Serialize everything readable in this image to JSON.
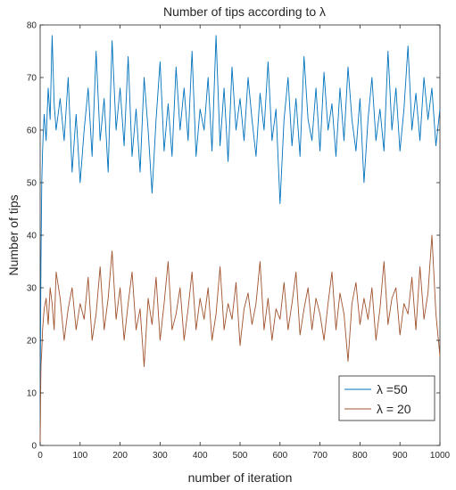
{
  "chart_data": {
    "type": "line",
    "title": "Number of tips according to λ",
    "xlabel": "number of iteration",
    "ylabel": "Number of tips",
    "xlim": [
      0,
      1000
    ],
    "ylim": [
      0,
      80
    ],
    "xticks": [
      0,
      100,
      200,
      300,
      400,
      500,
      600,
      700,
      800,
      900,
      1000
    ],
    "yticks": [
      0,
      10,
      20,
      30,
      40,
      50,
      60,
      70,
      80
    ],
    "grid": false,
    "legend_position": "bottom-right",
    "series": [
      {
        "name": "λ =50",
        "color": "#0072BD",
        "x": [
          0,
          1,
          2,
          4,
          6,
          8,
          10,
          15,
          20,
          25,
          30,
          35,
          40,
          50,
          60,
          70,
          80,
          90,
          100,
          110,
          120,
          130,
          140,
          150,
          160,
          170,
          180,
          190,
          200,
          210,
          220,
          230,
          240,
          250,
          260,
          270,
          280,
          290,
          300,
          310,
          320,
          330,
          340,
          350,
          360,
          370,
          380,
          390,
          400,
          410,
          420,
          430,
          440,
          450,
          460,
          470,
          480,
          490,
          500,
          510,
          520,
          530,
          540,
          550,
          560,
          570,
          580,
          590,
          600,
          610,
          620,
          630,
          640,
          650,
          660,
          670,
          680,
          690,
          700,
          710,
          720,
          730,
          740,
          750,
          760,
          770,
          780,
          790,
          800,
          810,
          820,
          830,
          840,
          850,
          860,
          870,
          880,
          890,
          900,
          910,
          920,
          930,
          940,
          950,
          960,
          970,
          980,
          990,
          1000
        ],
        "values": [
          0,
          20,
          35,
          50,
          56,
          60,
          63,
          58,
          68,
          62,
          78,
          65,
          60,
          66,
          58,
          70,
          52,
          63,
          50,
          60,
          68,
          55,
          75,
          58,
          66,
          52,
          77,
          60,
          68,
          57,
          74,
          55,
          64,
          52,
          70,
          60,
          48,
          62,
          73,
          56,
          65,
          55,
          72,
          60,
          68,
          58,
          75,
          55,
          64,
          60,
          70,
          56,
          78,
          57,
          68,
          54,
          72,
          60,
          66,
          58,
          70,
          62,
          55,
          67,
          60,
          73,
          58,
          64,
          46,
          62,
          70,
          57,
          66,
          55,
          74,
          62,
          58,
          68,
          56,
          71,
          60,
          65,
          55,
          68,
          58,
          72,
          62,
          56,
          66,
          50,
          62,
          70,
          58,
          64,
          56,
          75,
          60,
          68,
          56,
          64,
          76,
          60,
          67,
          58,
          70,
          62,
          68,
          57,
          64
        ]
      },
      {
        "name": "λ = 20",
        "color": "#A0522D",
        "x": [
          0,
          1,
          2,
          4,
          6,
          8,
          10,
          15,
          20,
          25,
          30,
          35,
          40,
          50,
          60,
          70,
          80,
          90,
          100,
          110,
          120,
          130,
          140,
          150,
          160,
          170,
          180,
          190,
          200,
          210,
          220,
          230,
          240,
          250,
          260,
          270,
          280,
          290,
          300,
          310,
          320,
          330,
          340,
          350,
          360,
          370,
          380,
          390,
          400,
          410,
          420,
          430,
          440,
          450,
          460,
          470,
          480,
          490,
          500,
          510,
          520,
          530,
          540,
          550,
          560,
          570,
          580,
          590,
          600,
          610,
          620,
          630,
          640,
          650,
          660,
          670,
          680,
          690,
          700,
          710,
          720,
          730,
          740,
          750,
          760,
          770,
          780,
          790,
          800,
          810,
          820,
          830,
          840,
          850,
          860,
          870,
          880,
          890,
          900,
          910,
          920,
          930,
          940,
          950,
          960,
          970,
          980,
          990,
          1000
        ],
        "values": [
          0,
          8,
          15,
          18,
          22,
          24,
          26,
          28,
          23,
          30,
          27,
          22,
          33,
          28,
          20,
          26,
          30,
          22,
          27,
          24,
          32,
          20,
          25,
          34,
          22,
          28,
          37,
          24,
          30,
          20,
          27,
          33,
          22,
          26,
          15,
          28,
          23,
          32,
          20,
          27,
          35,
          22,
          25,
          30,
          20,
          26,
          33,
          22,
          28,
          24,
          30,
          20,
          25,
          34,
          22,
          27,
          24,
          31,
          19,
          26,
          29,
          23,
          27,
          35,
          22,
          28,
          20,
          26,
          24,
          31,
          22,
          27,
          33,
          21,
          26,
          30,
          22,
          28,
          25,
          20,
          27,
          33,
          22,
          29,
          25,
          16,
          27,
          31,
          23,
          28,
          24,
          30,
          20,
          26,
          35,
          23,
          28,
          30,
          21,
          27,
          25,
          32,
          22,
          34,
          24,
          29,
          40,
          25,
          17
        ]
      }
    ]
  }
}
